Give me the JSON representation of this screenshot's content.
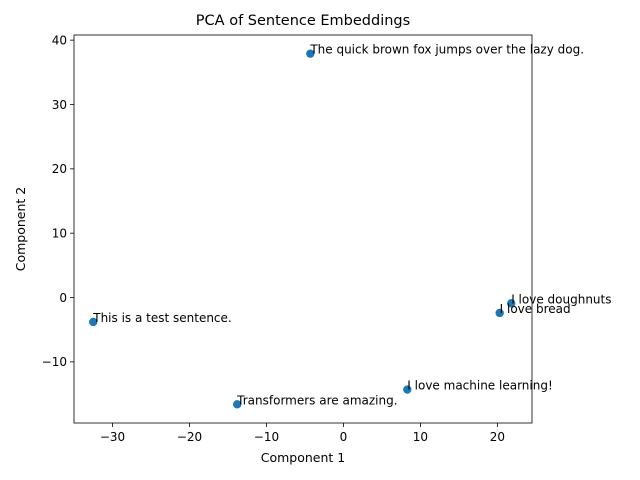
{
  "chart_data": {
    "type": "scatter",
    "title": "PCA of Sentence Embeddings",
    "xlabel": "Component 1",
    "ylabel": "Component 2",
    "xlim": [
      -35,
      24.5
    ],
    "ylim": [
      -19.5,
      40.8
    ],
    "xticks": [
      -30,
      -20,
      -10,
      0,
      10,
      20
    ],
    "yticks": [
      -10,
      0,
      10,
      20,
      30,
      40
    ],
    "grid": false,
    "point_color": "#1f77b4",
    "points": [
      {
        "x": -4.3,
        "y": 37.9,
        "label": "The quick brown fox jumps over the lazy dog."
      },
      {
        "x": 21.8,
        "y": -0.9,
        "label": "I love doughnuts"
      },
      {
        "x": 20.3,
        "y": -2.4,
        "label": "I love bread"
      },
      {
        "x": -32.5,
        "y": -3.8,
        "label": "This is a test sentence."
      },
      {
        "x": 8.3,
        "y": -14.3,
        "label": "I love machine learning!"
      },
      {
        "x": -13.8,
        "y": -16.6,
        "label": "Transformers are amazing."
      }
    ]
  }
}
